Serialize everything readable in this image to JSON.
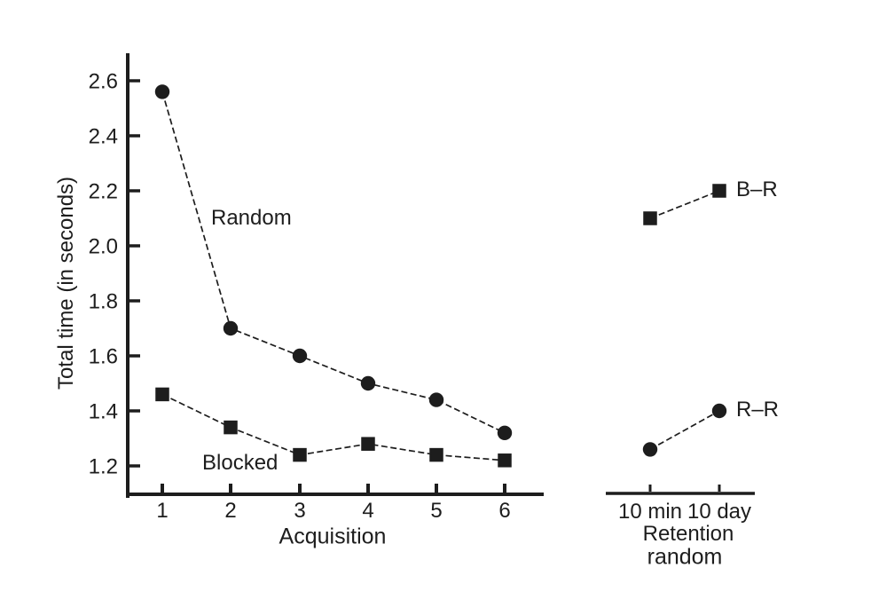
{
  "figure": {
    "background": "#ffffff",
    "ink": "#1d1d1d"
  },
  "chart_data": {
    "type": "line",
    "title": "",
    "ylabel": "Total time (in seconds)",
    "ylim": [
      1.1,
      2.7
    ],
    "yticks": [
      "1.2",
      "1.4",
      "1.6",
      "1.8",
      "2.0",
      "2.2",
      "2.4",
      "2.6"
    ],
    "grid": false,
    "legend_position": "inline-annotations",
    "line_style": "dashed",
    "marker_color": "#1d1d1d",
    "panels": [
      {
        "name": "acquisition",
        "xlabel": "Acquisition",
        "categories": [
          "1",
          "2",
          "3",
          "4",
          "5",
          "6"
        ],
        "series": [
          {
            "name": "Random",
            "marker": "circle",
            "values": [
              2.56,
              1.7,
              1.6,
              1.5,
              1.44,
              1.32
            ]
          },
          {
            "name": "Blocked",
            "marker": "square",
            "values": [
              1.46,
              1.34,
              1.24,
              1.28,
              1.24,
              1.22
            ]
          }
        ]
      },
      {
        "name": "retention",
        "xlabel_line1": "Retention",
        "xlabel_line2": "random",
        "categories": [
          "10 min",
          "10 day"
        ],
        "series": [
          {
            "name": "B–R",
            "marker": "square",
            "values": [
              2.1,
              2.2
            ]
          },
          {
            "name": "R–R",
            "marker": "circle",
            "values": [
              1.26,
              1.4
            ]
          }
        ]
      }
    ]
  }
}
